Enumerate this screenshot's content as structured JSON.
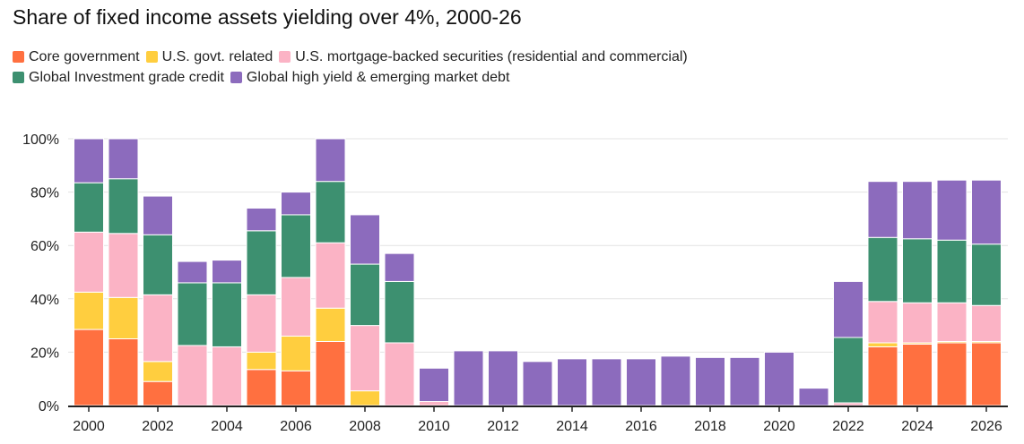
{
  "chart_data": {
    "type": "bar",
    "stacked": true,
    "title": "Share of fixed income assets yielding over 4%, 2000-26",
    "xlabel": "",
    "ylabel": "",
    "ylim": [
      0,
      100
    ],
    "y_ticks": [
      "0%",
      "20%",
      "40%",
      "60%",
      "80%",
      "100%"
    ],
    "x_tick_labels": [
      "2000",
      "2002",
      "2004",
      "2006",
      "2008",
      "2010",
      "2012",
      "2014",
      "2016",
      "2018",
      "2020",
      "2022",
      "2024",
      "2026"
    ],
    "legend_position": "top-left",
    "grid": true,
    "categories": [
      "2000",
      "2001",
      "2002",
      "2003",
      "2004",
      "2005",
      "2006",
      "2007",
      "2008",
      "2009",
      "2010",
      "2011",
      "2012",
      "2013",
      "2014",
      "2015",
      "2016",
      "2017",
      "2018",
      "2019",
      "2020",
      "2021",
      "2022",
      "2023",
      "2024",
      "2025",
      "2026"
    ],
    "series": [
      {
        "name": "Core government",
        "color": "#ff7040",
        "values": [
          28.5,
          25,
          9,
          0,
          0,
          13.5,
          13,
          24,
          0,
          0,
          0,
          0,
          0,
          0,
          0,
          0,
          0,
          0,
          0,
          0,
          0,
          0,
          0,
          22,
          23,
          23.5,
          23.5
        ]
      },
      {
        "name": "U.S. govt. related",
        "color": "#ffce3f",
        "values": [
          14,
          15.5,
          7.5,
          0,
          0,
          6.5,
          13,
          12.5,
          5.5,
          0,
          0,
          0,
          0,
          0,
          0,
          0,
          0,
          0,
          0,
          0,
          0,
          0,
          0,
          1.5,
          0.5,
          0.5,
          0.5
        ]
      },
      {
        "name": "U.S. mortgage-backed securities (residential and commercial)",
        "color": "#fbb3c5",
        "values": [
          22.5,
          24,
          25,
          22.5,
          22,
          21.5,
          22,
          24.5,
          24.5,
          23.5,
          1.5,
          0,
          0,
          0,
          0,
          0,
          0,
          0,
          0,
          0,
          0,
          0,
          1,
          15.5,
          15,
          14.5,
          13.5
        ]
      },
      {
        "name": "Global Investment grade credit",
        "color": "#3d9070",
        "values": [
          18.5,
          20.5,
          22.5,
          23.5,
          24,
          24,
          23.5,
          23,
          23,
          23,
          0,
          0,
          0,
          0,
          0,
          0,
          0,
          0,
          0,
          0,
          0,
          0,
          24.5,
          24,
          24,
          23.5,
          23
        ]
      },
      {
        "name": "Global high yield & emerging market debt",
        "color": "#8c6bbd",
        "values": [
          16.5,
          15,
          14.5,
          8,
          8.5,
          8.5,
          8.5,
          16,
          18.5,
          10.5,
          12.5,
          20.5,
          20.5,
          16.5,
          17.5,
          17.5,
          17.5,
          18.5,
          18,
          18,
          20,
          6.5,
          21,
          21,
          21.5,
          22.5,
          24
        ]
      }
    ]
  }
}
